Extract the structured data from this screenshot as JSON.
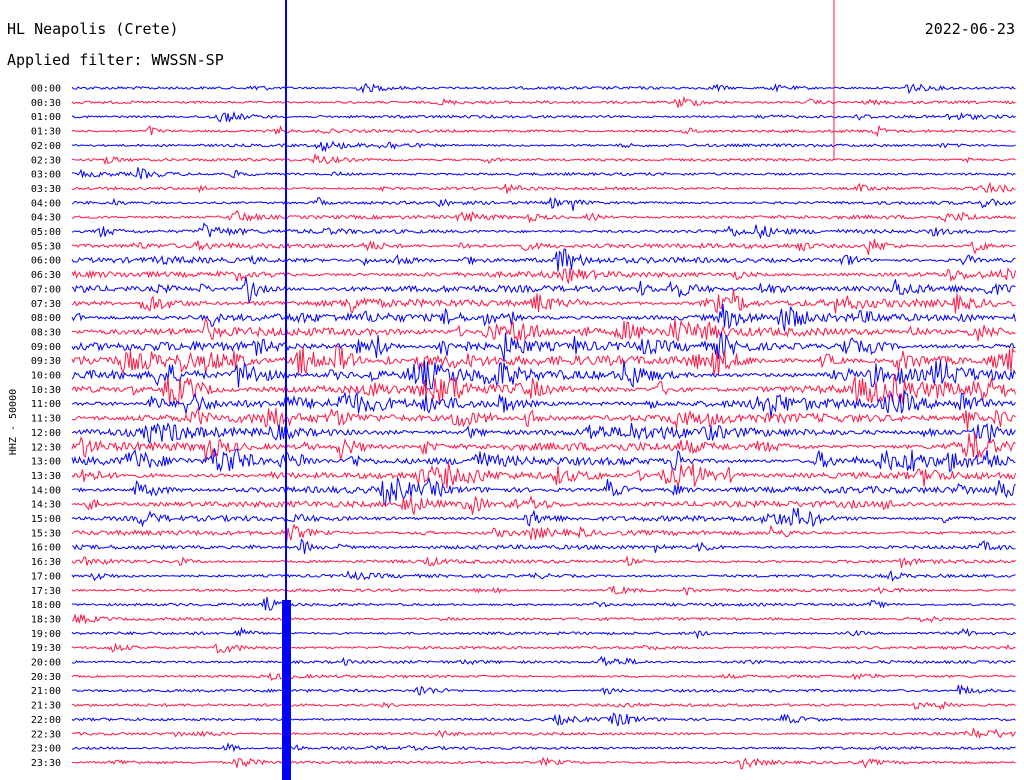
{
  "header": {
    "station": "HL Neapolis (Crete)",
    "date": "2022-06-23",
    "filter": "Applied filter: WWSSN-SP"
  },
  "chart_data": {
    "type": "line",
    "title": "HL Neapolis (Crete)",
    "subtitle": "Applied filter: WWSSN-SP",
    "ylabel": "HHZ - 50000",
    "xlabel": "",
    "rows": [
      "00:00",
      "00:30",
      "01:00",
      "01:30",
      "02:00",
      "02:30",
      "03:00",
      "03:30",
      "04:00",
      "04:30",
      "05:00",
      "05:30",
      "06:00",
      "06:30",
      "07:00",
      "07:30",
      "08:00",
      "08:30",
      "09:00",
      "09:30",
      "10:00",
      "10:30",
      "11:00",
      "11:30",
      "12:00",
      "12:30",
      "13:00",
      "13:30",
      "14:00",
      "14:30",
      "15:00",
      "15:30",
      "16:00",
      "16:30",
      "17:00",
      "17:30",
      "18:00",
      "18:30",
      "19:00",
      "19:30",
      "20:00",
      "20:30",
      "21:00",
      "21:30",
      "22:00",
      "22:30",
      "23:00",
      "23:30"
    ],
    "colors": [
      "#0000ff",
      "#ff1744"
    ],
    "grid": false,
    "legend": "none"
  }
}
